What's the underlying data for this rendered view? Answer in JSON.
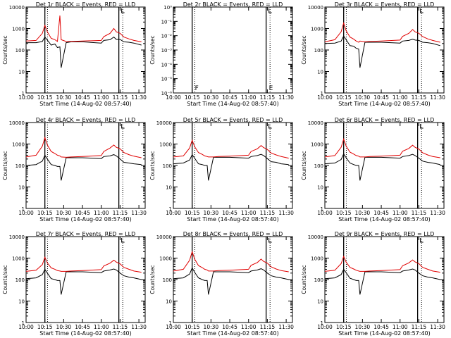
{
  "figure": {
    "xlabel": "Start Time (14-Aug-02 08:57:40)",
    "ylabel": "Counts/sec",
    "x_ticks": [
      "10:00",
      "10:15",
      "10:30",
      "10:45",
      "11:00",
      "11:15",
      "11:30"
    ],
    "y_ticks_counts": [
      "1",
      "10",
      "100",
      "1000",
      "10000"
    ],
    "y_ticks_empty": [
      "10⁰",
      "10⁻¹",
      "10⁻²",
      "10⁻³",
      "10⁻⁴",
      "10⁻⁵",
      "10⁻⁶"
    ],
    "colors": {
      "events": "#000000",
      "lld": "#e00000"
    },
    "segment_marks": [
      "F",
      "E"
    ]
  },
  "chart_data": [
    {
      "type": "line",
      "title": "Det 1r  BLACK = Events, RED = LLD",
      "ylabel": "Counts/sec",
      "xlabel": "Start Time (14-Aug-02 08:57:40)",
      "ylim": [
        1,
        10000
      ],
      "log_y": true,
      "series": [
        {
          "name": "Events",
          "x": [
            "10:00",
            "10:08",
            "10:13",
            "10:15",
            "10:17",
            "10:20",
            "10:23",
            "10:25",
            "10:27",
            "10:28",
            "10:32",
            "10:36",
            "10:45",
            "11:00",
            "11:02",
            "11:07",
            "11:10",
            "11:12",
            "11:15",
            "11:18",
            "11:22",
            "11:26",
            "11:32"
          ],
          "values": [
            220,
            220,
            250,
            400,
            290,
            170,
            190,
            130,
            140,
            15,
            220,
            240,
            240,
            210,
            280,
            300,
            400,
            310,
            310,
            240,
            230,
            210,
            170
          ]
        },
        {
          "name": "LLD",
          "x": [
            "10:00",
            "10:08",
            "10:13",
            "10:15",
            "10:17",
            "10:20",
            "10:23",
            "10:25",
            "10:27",
            "10:28",
            "10:32",
            "10:36",
            "10:45",
            "11:00",
            "11:02",
            "11:07",
            "11:10",
            "11:12",
            "11:15",
            "11:18",
            "11:22",
            "11:26",
            "11:32"
          ],
          "values": [
            260,
            280,
            600,
            1400,
            700,
            350,
            300,
            250,
            4000,
            300,
            250,
            250,
            260,
            280,
            420,
            600,
            1000,
            700,
            600,
            400,
            330,
            280,
            240
          ]
        }
      ]
    },
    {
      "type": "line",
      "title": "Det 2r  BLACK = Events, RED = LLD",
      "ylabel": "Counts/sec",
      "xlabel": "Start Time (14-Aug-02 08:57:40)",
      "ylim": [
        1e-06,
        1
      ],
      "log_y": true,
      "series": []
    },
    {
      "type": "line",
      "title": "Det 3r  BLACK = Events, RED = LLD",
      "ylabel": "Counts/sec",
      "xlabel": "Start Time (14-Aug-02 08:57:40)",
      "ylim": [
        1,
        10000
      ],
      "log_y": true,
      "series": [
        {
          "name": "Events",
          "x": [
            "10:00",
            "10:08",
            "10:13",
            "10:15",
            "10:17",
            "10:20",
            "10:23",
            "10:25",
            "10:27",
            "10:28",
            "10:32",
            "10:36",
            "10:45",
            "11:00",
            "11:02",
            "11:07",
            "11:10",
            "11:12",
            "11:15",
            "11:18",
            "11:22",
            "11:26",
            "11:32"
          ],
          "values": [
            200,
            210,
            260,
            450,
            300,
            160,
            150,
            120,
            110,
            15,
            230,
            230,
            230,
            210,
            260,
            280,
            320,
            290,
            280,
            230,
            220,
            200,
            160
          ]
        },
        {
          "name": "LLD",
          "x": [
            "10:00",
            "10:08",
            "10:13",
            "10:15",
            "10:17",
            "10:20",
            "10:23",
            "10:25",
            "10:27",
            "10:28",
            "10:32",
            "10:36",
            "10:45",
            "11:00",
            "11:02",
            "11:07",
            "11:10",
            "11:12",
            "11:15",
            "11:18",
            "11:22",
            "11:26",
            "11:32"
          ],
          "values": [
            240,
            300,
            700,
            1800,
            800,
            400,
            320,
            260,
            230,
            260,
            240,
            250,
            260,
            290,
            430,
            600,
            900,
            700,
            600,
            420,
            330,
            280,
            230
          ]
        }
      ]
    },
    {
      "type": "line",
      "title": "Det 4r  BLACK = Events, RED = LLD",
      "ylabel": "Counts/sec",
      "xlabel": "Start Time (14-Aug-02 08:57:40)",
      "ylim": [
        1,
        10000
      ],
      "log_y": true,
      "series": [
        {
          "name": "Events",
          "x": [
            "10:00",
            "10:08",
            "10:13",
            "10:15",
            "10:17",
            "10:20",
            "10:23",
            "10:25",
            "10:27",
            "10:28",
            "10:32",
            "10:36",
            "10:45",
            "11:00",
            "11:02",
            "11:07",
            "11:10",
            "11:12",
            "11:15",
            "11:18",
            "11:22",
            "11:26",
            "11:32"
          ],
          "values": [
            100,
            110,
            160,
            300,
            200,
            110,
            100,
            90,
            90,
            20,
            230,
            230,
            230,
            210,
            260,
            280,
            320,
            280,
            200,
            140,
            130,
            120,
            110
          ]
        },
        {
          "name": "LLD",
          "x": [
            "10:00",
            "10:08",
            "10:13",
            "10:15",
            "10:17",
            "10:20",
            "10:23",
            "10:25",
            "10:27",
            "10:28",
            "10:32",
            "10:36",
            "10:45",
            "11:00",
            "11:02",
            "11:07",
            "11:10",
            "11:12",
            "11:15",
            "11:18",
            "11:22",
            "11:26",
            "11:32"
          ],
          "values": [
            250,
            300,
            800,
            2000,
            900,
            450,
            360,
            300,
            280,
            250,
            240,
            250,
            260,
            290,
            450,
            650,
            900,
            700,
            600,
            400,
            320,
            270,
            230
          ]
        }
      ]
    },
    {
      "type": "line",
      "title": "Det 5r  BLACK = Events, RED = LLD",
      "ylabel": "Counts/sec",
      "xlabel": "Start Time (14-Aug-02 08:57:40)",
      "ylim": [
        1,
        10000
      ],
      "log_y": true,
      "series": [
        {
          "name": "Events",
          "x": [
            "10:00",
            "10:08",
            "10:13",
            "10:15",
            "10:17",
            "10:20",
            "10:23",
            "10:25",
            "10:27",
            "10:28",
            "10:32",
            "10:36",
            "10:45",
            "11:00",
            "11:02",
            "11:07",
            "11:10",
            "11:12",
            "11:15",
            "11:18",
            "11:22",
            "11:26",
            "11:32"
          ],
          "values": [
            120,
            130,
            180,
            320,
            220,
            120,
            110,
            100,
            100,
            20,
            240,
            240,
            240,
            220,
            260,
            290,
            330,
            290,
            210,
            150,
            140,
            120,
            110
          ]
        },
        {
          "name": "LLD",
          "x": [
            "10:00",
            "10:08",
            "10:13",
            "10:15",
            "10:17",
            "10:20",
            "10:23",
            "10:25",
            "10:27",
            "10:28",
            "10:32",
            "10:36",
            "10:45",
            "11:00",
            "11:02",
            "11:07",
            "11:10",
            "11:12",
            "11:15",
            "11:18",
            "11:22",
            "11:26",
            "11:32"
          ],
          "values": [
            250,
            280,
            650,
            1500,
            750,
            400,
            330,
            280,
            260,
            250,
            250,
            260,
            270,
            300,
            450,
            600,
            850,
            680,
            560,
            380,
            310,
            260,
            220
          ]
        }
      ]
    },
    {
      "type": "line",
      "title": "Det 6r  BLACK = Events, RED = LLD",
      "ylabel": "Counts/sec",
      "xlabel": "Start Time (14-Aug-02 08:57:40)",
      "ylim": [
        1,
        10000
      ],
      "log_y": true,
      "series": [
        {
          "name": "Events",
          "x": [
            "10:00",
            "10:08",
            "10:13",
            "10:15",
            "10:17",
            "10:20",
            "10:23",
            "10:25",
            "10:27",
            "10:28",
            "10:32",
            "10:36",
            "10:45",
            "11:00",
            "11:02",
            "11:07",
            "11:10",
            "11:12",
            "11:15",
            "11:18",
            "11:22",
            "11:26",
            "11:32"
          ],
          "values": [
            120,
            130,
            190,
            350,
            230,
            130,
            110,
            100,
            100,
            20,
            240,
            240,
            240,
            220,
            260,
            290,
            330,
            290,
            220,
            160,
            140,
            130,
            110
          ]
        },
        {
          "name": "LLD",
          "x": [
            "10:00",
            "10:08",
            "10:13",
            "10:15",
            "10:17",
            "10:20",
            "10:23",
            "10:25",
            "10:27",
            "10:28",
            "10:32",
            "10:36",
            "10:45",
            "11:00",
            "11:02",
            "11:07",
            "11:10",
            "11:12",
            "11:15",
            "11:18",
            "11:22",
            "11:26",
            "11:32"
          ],
          "values": [
            250,
            290,
            700,
            1700,
            800,
            420,
            340,
            290,
            270,
            250,
            250,
            260,
            270,
            300,
            460,
            620,
            880,
            700,
            580,
            390,
            310,
            260,
            230
          ]
        }
      ]
    },
    {
      "type": "line",
      "title": "Det 7r  BLACK = Events, RED = LLD",
      "ylabel": "Counts/sec",
      "xlabel": "Start Time (14-Aug-02 08:57:40)",
      "ylim": [
        1,
        10000
      ],
      "log_y": true,
      "series": [
        {
          "name": "Events",
          "x": [
            "10:00",
            "10:08",
            "10:13",
            "10:15",
            "10:17",
            "10:20",
            "10:23",
            "10:25",
            "10:27",
            "10:28",
            "10:32",
            "10:36",
            "10:45",
            "11:00",
            "11:02",
            "11:07",
            "11:10",
            "11:12",
            "11:15",
            "11:18",
            "11:22",
            "11:26",
            "11:32"
          ],
          "values": [
            110,
            120,
            170,
            300,
            200,
            110,
            100,
            90,
            90,
            20,
            230,
            230,
            230,
            210,
            250,
            280,
            310,
            280,
            200,
            150,
            130,
            120,
            100
          ]
        },
        {
          "name": "LLD",
          "x": [
            "10:00",
            "10:08",
            "10:13",
            "10:15",
            "10:17",
            "10:20",
            "10:23",
            "10:25",
            "10:27",
            "10:28",
            "10:32",
            "10:36",
            "10:45",
            "11:00",
            "11:02",
            "11:07",
            "11:10",
            "11:12",
            "11:15",
            "11:18",
            "11:22",
            "11:26",
            "11:32"
          ],
          "values": [
            240,
            270,
            500,
            1100,
            600,
            350,
            300,
            260,
            250,
            240,
            240,
            250,
            260,
            290,
            430,
            580,
            800,
            650,
            540,
            370,
            300,
            250,
            220
          ]
        }
      ]
    },
    {
      "type": "line",
      "title": "Det 8r  BLACK = Events, RED = LLD",
      "ylabel": "Counts/sec",
      "xlabel": "Start Time (14-Aug-02 08:57:40)",
      "ylim": [
        1,
        10000
      ],
      "log_y": true,
      "series": [
        {
          "name": "Events",
          "x": [
            "10:00",
            "10:08",
            "10:13",
            "10:15",
            "10:17",
            "10:20",
            "10:23",
            "10:25",
            "10:27",
            "10:28",
            "10:32",
            "10:36",
            "10:45",
            "11:00",
            "11:02",
            "11:07",
            "11:10",
            "11:12",
            "11:15",
            "11:18",
            "11:22",
            "11:26",
            "11:32"
          ],
          "values": [
            110,
            120,
            180,
            350,
            220,
            120,
            100,
            90,
            90,
            20,
            230,
            230,
            230,
            210,
            250,
            280,
            320,
            280,
            200,
            150,
            130,
            120,
            100
          ]
        },
        {
          "name": "LLD",
          "x": [
            "10:00",
            "10:08",
            "10:13",
            "10:15",
            "10:17",
            "10:20",
            "10:23",
            "10:25",
            "10:27",
            "10:28",
            "10:32",
            "10:36",
            "10:45",
            "11:00",
            "11:02",
            "11:07",
            "11:10",
            "11:12",
            "11:15",
            "11:18",
            "11:22",
            "11:26",
            "11:32"
          ],
          "values": [
            250,
            300,
            800,
            2000,
            900,
            450,
            360,
            300,
            280,
            250,
            250,
            260,
            270,
            300,
            460,
            620,
            900,
            700,
            580,
            390,
            310,
            260,
            230
          ]
        }
      ]
    },
    {
      "type": "line",
      "title": "Det 9r  BLACK = Events, RED = LLD",
      "ylabel": "Counts/sec",
      "xlabel": "Start Time (14-Aug-02 08:57:40)",
      "ylim": [
        1,
        10000
      ],
      "log_y": true,
      "series": [
        {
          "name": "Events",
          "x": [
            "10:00",
            "10:08",
            "10:13",
            "10:15",
            "10:17",
            "10:20",
            "10:23",
            "10:25",
            "10:27",
            "10:28",
            "10:32",
            "10:36",
            "10:45",
            "11:00",
            "11:02",
            "11:07",
            "11:10",
            "11:12",
            "11:15",
            "11:18",
            "11:22",
            "11:26",
            "11:32"
          ],
          "values": [
            110,
            120,
            170,
            300,
            210,
            115,
            100,
            90,
            90,
            20,
            230,
            230,
            230,
            210,
            250,
            280,
            310,
            280,
            200,
            150,
            130,
            120,
            100
          ]
        },
        {
          "name": "LLD",
          "x": [
            "10:00",
            "10:08",
            "10:13",
            "10:15",
            "10:17",
            "10:20",
            "10:23",
            "10:25",
            "10:27",
            "10:28",
            "10:32",
            "10:36",
            "10:45",
            "11:00",
            "11:02",
            "11:07",
            "11:10",
            "11:12",
            "11:15",
            "11:18",
            "11:22",
            "11:26",
            "11:32"
          ],
          "values": [
            240,
            270,
            550,
            1200,
            650,
            370,
            310,
            270,
            250,
            240,
            240,
            250,
            260,
            290,
            440,
            600,
            820,
            660,
            550,
            370,
            300,
            250,
            220
          ]
        }
      ]
    }
  ]
}
